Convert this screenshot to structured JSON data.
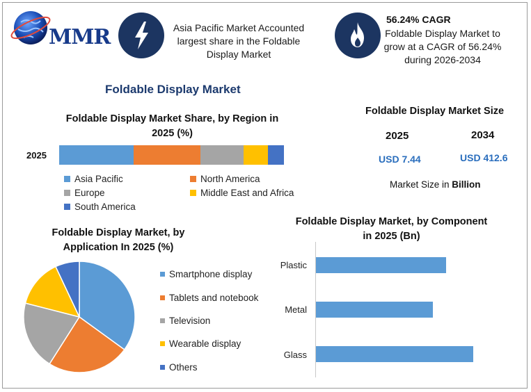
{
  "header": {
    "logo_text": "MMR",
    "card1": {
      "icon": "lightning-bolt-icon",
      "text": [
        "Asia Pacific Market Accounted",
        "largest share in the Foldable",
        "Display Market"
      ]
    },
    "card2": {
      "icon": "flame-icon",
      "title": "56.24% CAGR",
      "text": [
        "Foldable Display Market to",
        "grow at a CAGR of 56.24%",
        "during 2026-2034"
      ]
    }
  },
  "main_title": "Foldable Display Market",
  "colors": {
    "asia_pacific": "#5b9bd5",
    "north_america": "#ed7d31",
    "europe": "#a5a5a5",
    "middle_east_africa": "#ffc000",
    "south_america": "#4472c4",
    "accent": "#1c3561",
    "value_blue": "#2a6ebd"
  },
  "market_size": {
    "title": "Foldable Display Market Size",
    "year1": "2025",
    "year2": "2034",
    "value1": "USD 7.44",
    "value2": "USD 412.6",
    "note_prefix": "Market Size in ",
    "note_unit": "Billion"
  },
  "chart_data": [
    {
      "type": "bar",
      "orientation": "horizontal-stacked",
      "title": [
        "Foldable Display Market Share, by Region in",
        "2025 (%)"
      ],
      "categories": [
        "2025"
      ],
      "series": [
        {
          "name": "Asia Pacific",
          "values": [
            33
          ],
          "color": "#5b9bd5"
        },
        {
          "name": "North America",
          "values": [
            30
          ],
          "color": "#ed7d31"
        },
        {
          "name": "Europe",
          "values": [
            19
          ],
          "color": "#a5a5a5"
        },
        {
          "name": "Middle East and Africa",
          "values": [
            11
          ],
          "color": "#ffc000"
        },
        {
          "name": "South America",
          "values": [
            7
          ],
          "color": "#4472c4"
        }
      ],
      "legend_position": "bottom"
    },
    {
      "type": "pie",
      "title": [
        "Foldable Display Market, by",
        "Application In 2025 (%)"
      ],
      "labels": [
        "Smartphone display",
        "Tablets and notebook",
        "Television",
        "Wearable display",
        "Others"
      ],
      "values": [
        35,
        24,
        20,
        14,
        7
      ],
      "colors": [
        "#5b9bd5",
        "#ed7d31",
        "#a5a5a5",
        "#ffc000",
        "#4472c4"
      ],
      "legend_position": "right"
    },
    {
      "type": "bar",
      "orientation": "horizontal",
      "title": [
        "Foldable Display Market, by Component",
        "in 2025 (Bn)"
      ],
      "categories": [
        "Plastic",
        "Metal",
        "Glass"
      ],
      "values": [
        2.9,
        2.6,
        3.5
      ],
      "xlim": [
        0,
        4.5
      ],
      "color": "#5b9bd5"
    }
  ]
}
